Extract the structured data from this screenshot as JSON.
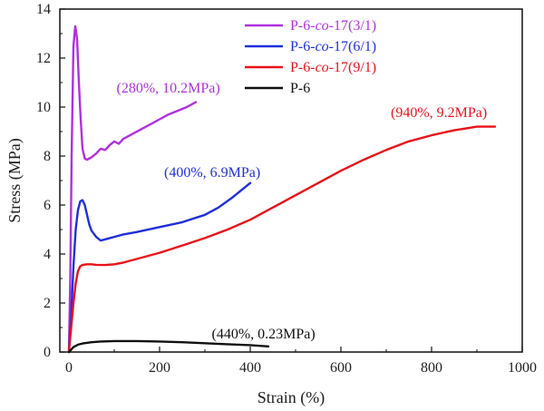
{
  "chart_data": {
    "type": "line",
    "title": "",
    "xlabel": "Strain (%)",
    "ylabel": "Stress (MPa)",
    "xlim": [
      -20,
      1000
    ],
    "ylim": [
      0,
      14
    ],
    "xticks": [
      0,
      200,
      400,
      600,
      800,
      1000
    ],
    "yticks": [
      0,
      2,
      4,
      6,
      8,
      10,
      12,
      14
    ],
    "x_tick_labels": [
      "0",
      "200",
      "400",
      "600",
      "800",
      "1000"
    ],
    "y_tick_labels": [
      "0",
      "2",
      "4",
      "6",
      "8",
      "10",
      "12",
      "14"
    ],
    "grid": false,
    "legend_position": "top-center",
    "series": [
      {
        "name": "P-6-co-17(3/1)",
        "legend_parts": [
          "P-6-",
          "co",
          "-17(3/1)"
        ],
        "color": "#b030e0",
        "x": [
          0,
          3,
          6,
          10,
          14,
          18,
          22,
          26,
          30,
          35,
          40,
          50,
          60,
          70,
          80,
          90,
          100,
          110,
          120,
          140,
          160,
          180,
          200,
          220,
          240,
          260,
          280
        ],
        "y": [
          0,
          3.0,
          8.0,
          12.5,
          13.3,
          12.8,
          11.0,
          9.5,
          8.3,
          7.9,
          7.85,
          7.95,
          8.1,
          8.3,
          8.25,
          8.45,
          8.6,
          8.5,
          8.7,
          8.9,
          9.1,
          9.3,
          9.5,
          9.7,
          9.85,
          10.0,
          10.2
        ]
      },
      {
        "name": "P-6-co-17(6/1)",
        "legend_parts": [
          "P-6-",
          "co",
          "-17(6/1)"
        ],
        "color": "#1f2fdc",
        "x": [
          0,
          5,
          10,
          15,
          20,
          25,
          30,
          35,
          40,
          45,
          50,
          60,
          70,
          80,
          100,
          120,
          150,
          200,
          250,
          300,
          330,
          360,
          380,
          400
        ],
        "y": [
          0,
          1.5,
          3.5,
          5.0,
          5.8,
          6.15,
          6.2,
          6.0,
          5.6,
          5.2,
          4.95,
          4.7,
          4.55,
          4.6,
          4.7,
          4.8,
          4.9,
          5.1,
          5.3,
          5.6,
          5.9,
          6.3,
          6.6,
          6.9
        ]
      },
      {
        "name": "P-6-co-17(9/1)",
        "legend_parts": [
          "P-6-",
          "co",
          "-17(9/1)"
        ],
        "color": "#e8131b",
        "x": [
          0,
          5,
          10,
          15,
          20,
          25,
          30,
          40,
          50,
          60,
          80,
          100,
          120,
          150,
          200,
          250,
          300,
          350,
          400,
          450,
          500,
          550,
          600,
          650,
          700,
          750,
          800,
          850,
          900,
          940
        ],
        "y": [
          0,
          1.0,
          2.0,
          2.8,
          3.3,
          3.5,
          3.55,
          3.58,
          3.58,
          3.56,
          3.55,
          3.58,
          3.65,
          3.8,
          4.05,
          4.35,
          4.65,
          5.0,
          5.4,
          5.9,
          6.4,
          6.9,
          7.4,
          7.85,
          8.25,
          8.6,
          8.85,
          9.05,
          9.2,
          9.2
        ]
      },
      {
        "name": "P-6",
        "legend_parts": [
          "P-6",
          "",
          ""
        ],
        "color": "#111111",
        "x": [
          0,
          5,
          10,
          20,
          30,
          50,
          70,
          100,
          150,
          200,
          250,
          300,
          350,
          400,
          440
        ],
        "y": [
          0,
          0.1,
          0.2,
          0.3,
          0.35,
          0.4,
          0.43,
          0.45,
          0.45,
          0.43,
          0.4,
          0.36,
          0.32,
          0.28,
          0.23
        ]
      }
    ],
    "annotations": [
      {
        "text": "(280%, 10.2MPa)",
        "color": "#b030e0",
        "x": 105,
        "y": 10.6
      },
      {
        "text": "(400%, 6.9MPa)",
        "color": "#1f2fdc",
        "x": 210,
        "y": 7.15
      },
      {
        "text": "(940%, 9.2MPa)",
        "color": "#e8131b",
        "x": 710,
        "y": 9.6
      },
      {
        "text": "(440%, 0.23MPa)",
        "color": "#111111",
        "x": 315,
        "y": 0.55
      }
    ]
  }
}
